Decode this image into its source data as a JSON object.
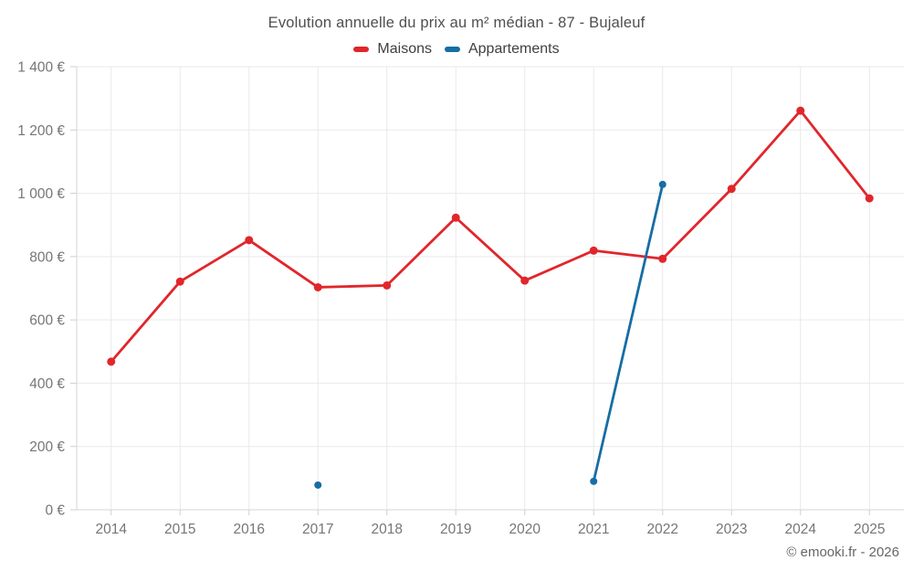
{
  "header": {
    "title": "Evolution annuelle du prix au m² médian - 87 - Bujaleuf"
  },
  "legend": {
    "items": [
      {
        "label": "Maisons",
        "color": "#e1262b"
      },
      {
        "label": "Appartements",
        "color": "#176da4"
      }
    ]
  },
  "footer": {
    "credit": "© emooki.fr - 2026"
  },
  "chart_data": {
    "type": "line",
    "title": "Evolution annuelle du prix au m² médian - 87 - Bujaleuf",
    "categories": [
      "2014",
      "2015",
      "2016",
      "2017",
      "2018",
      "2019",
      "2020",
      "2021",
      "2022",
      "2023",
      "2024",
      "2025"
    ],
    "series": [
      {
        "name": "Maisons",
        "color": "#e1262b",
        "marker_radius": 4.5,
        "line_width": 2.8,
        "values": [
          468,
          721,
          852,
          703,
          709,
          923,
          724,
          819,
          793,
          1014,
          1261,
          984
        ]
      },
      {
        "name": "Appartements",
        "color": "#176da4",
        "marker_radius": 4,
        "line_width": 2.8,
        "values": [
          null,
          null,
          null,
          78,
          null,
          null,
          null,
          90,
          1028,
          null,
          null,
          null
        ]
      }
    ],
    "xlabel": "",
    "ylabel": "",
    "ylim": [
      0,
      1400
    ],
    "ytick_step": 200,
    "ytick_labels": [
      "0 €",
      "200 €",
      "400 €",
      "600 €",
      "800 €",
      "1 000 €",
      "1 200 €",
      "1 400 €"
    ],
    "grid": true,
    "legend_position": "top",
    "note": "Appartements has data only for 2017, 2021, 2022; only adjacent years (2021-2022) are connected by a line"
  }
}
